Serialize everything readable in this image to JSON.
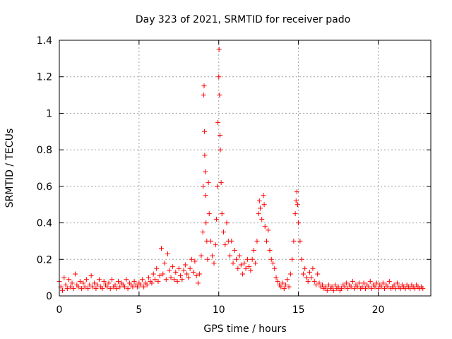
{
  "chart_data": {
    "type": "scatter",
    "title": "Day 323 of 2021, SRMTID for receiver pado",
    "xlabel": "GPS time / hours",
    "ylabel": "SRMTID / TECUs",
    "xlim": [
      0,
      23.3
    ],
    "ylim": [
      0,
      1.4
    ],
    "xticks": [
      0,
      5,
      10,
      15,
      20
    ],
    "yticks": [
      0,
      0.2,
      0.4,
      0.6,
      0.8,
      1,
      1.2,
      1.4
    ],
    "xtick_labels": [
      "0",
      "5",
      "10",
      "15",
      "20"
    ],
    "ytick_labels": [
      "0",
      "0.2",
      "0.4",
      "0.6",
      "0.8",
      "1",
      "1.2",
      "1.4"
    ],
    "grid": true,
    "marker": "+",
    "color": "#ff0000",
    "series": [
      {
        "name": "SRMTID",
        "points": [
          [
            0.0,
            0.08
          ],
          [
            0.1,
            0.05
          ],
          [
            0.2,
            0.03
          ],
          [
            0.3,
            0.1
          ],
          [
            0.4,
            0.06
          ],
          [
            0.5,
            0.04
          ],
          [
            0.6,
            0.09
          ],
          [
            0.7,
            0.05
          ],
          [
            0.8,
            0.07
          ],
          [
            0.9,
            0.04
          ],
          [
            1.0,
            0.12
          ],
          [
            1.1,
            0.06
          ],
          [
            1.2,
            0.05
          ],
          [
            1.3,
            0.08
          ],
          [
            1.4,
            0.04
          ],
          [
            1.5,
            0.07
          ],
          [
            1.6,
            0.05
          ],
          [
            1.7,
            0.09
          ],
          [
            1.8,
            0.04
          ],
          [
            1.9,
            0.06
          ],
          [
            2.0,
            0.11
          ],
          [
            2.1,
            0.05
          ],
          [
            2.2,
            0.07
          ],
          [
            2.3,
            0.04
          ],
          [
            2.4,
            0.06
          ],
          [
            2.5,
            0.09
          ],
          [
            2.6,
            0.05
          ],
          [
            2.7,
            0.04
          ],
          [
            2.8,
            0.08
          ],
          [
            2.9,
            0.06
          ],
          [
            3.0,
            0.05
          ],
          [
            3.1,
            0.07
          ],
          [
            3.2,
            0.04
          ],
          [
            3.3,
            0.09
          ],
          [
            3.4,
            0.05
          ],
          [
            3.5,
            0.06
          ],
          [
            3.6,
            0.04
          ],
          [
            3.7,
            0.08
          ],
          [
            3.8,
            0.05
          ],
          [
            3.9,
            0.07
          ],
          [
            4.0,
            0.06
          ],
          [
            4.1,
            0.05
          ],
          [
            4.2,
            0.09
          ],
          [
            4.3,
            0.04
          ],
          [
            4.4,
            0.07
          ],
          [
            4.5,
            0.06
          ],
          [
            4.6,
            0.05
          ],
          [
            4.7,
            0.08
          ],
          [
            4.8,
            0.06
          ],
          [
            4.9,
            0.05
          ],
          [
            5.0,
            0.07
          ],
          [
            5.1,
            0.06
          ],
          [
            5.2,
            0.09
          ],
          [
            5.3,
            0.05
          ],
          [
            5.4,
            0.07
          ],
          [
            5.5,
            0.06
          ],
          [
            5.6,
            0.1
          ],
          [
            5.7,
            0.08
          ],
          [
            5.8,
            0.07
          ],
          [
            5.9,
            0.12
          ],
          [
            6.0,
            0.09
          ],
          [
            6.1,
            0.15
          ],
          [
            6.2,
            0.08
          ],
          [
            6.3,
            0.11
          ],
          [
            6.4,
            0.26
          ],
          [
            6.5,
            0.12
          ],
          [
            6.6,
            0.18
          ],
          [
            6.7,
            0.09
          ],
          [
            6.8,
            0.23
          ],
          [
            6.9,
            0.14
          ],
          [
            7.0,
            0.1
          ],
          [
            7.1,
            0.16
          ],
          [
            7.2,
            0.09
          ],
          [
            7.3,
            0.13
          ],
          [
            7.4,
            0.08
          ],
          [
            7.5,
            0.15
          ],
          [
            7.6,
            0.11
          ],
          [
            7.7,
            0.09
          ],
          [
            7.8,
            0.14
          ],
          [
            7.9,
            0.17
          ],
          [
            8.0,
            0.12
          ],
          [
            8.1,
            0.1
          ],
          [
            8.2,
            0.15
          ],
          [
            8.3,
            0.2
          ],
          [
            8.4,
            0.13
          ],
          [
            8.5,
            0.19
          ],
          [
            8.6,
            0.11
          ],
          [
            8.7,
            0.07
          ],
          [
            8.8,
            0.12
          ],
          [
            8.9,
            0.22
          ],
          [
            9.0,
            0.35
          ],
          [
            9.02,
            0.6
          ],
          [
            9.05,
            1.1
          ],
          [
            9.08,
            1.15
          ],
          [
            9.1,
            0.9
          ],
          [
            9.12,
            0.77
          ],
          [
            9.15,
            0.68
          ],
          [
            9.18,
            0.55
          ],
          [
            9.2,
            0.4
          ],
          [
            9.25,
            0.3
          ],
          [
            9.3,
            0.2
          ],
          [
            9.35,
            0.62
          ],
          [
            9.4,
            0.45
          ],
          [
            9.5,
            0.3
          ],
          [
            9.6,
            0.22
          ],
          [
            9.7,
            0.18
          ],
          [
            9.8,
            0.28
          ],
          [
            9.85,
            0.42
          ],
          [
            9.9,
            0.6
          ],
          [
            9.95,
            0.95
          ],
          [
            10.0,
            1.2
          ],
          [
            10.02,
            1.35
          ],
          [
            10.05,
            1.1
          ],
          [
            10.08,
            0.88
          ],
          [
            10.1,
            0.8
          ],
          [
            10.15,
            0.62
          ],
          [
            10.2,
            0.45
          ],
          [
            10.3,
            0.35
          ],
          [
            10.4,
            0.28
          ],
          [
            10.5,
            0.4
          ],
          [
            10.6,
            0.3
          ],
          [
            10.7,
            0.22
          ],
          [
            10.8,
            0.3
          ],
          [
            10.9,
            0.18
          ],
          [
            11.0,
            0.25
          ],
          [
            11.1,
            0.2
          ],
          [
            11.2,
            0.15
          ],
          [
            11.3,
            0.22
          ],
          [
            11.4,
            0.17
          ],
          [
            11.5,
            0.12
          ],
          [
            11.6,
            0.18
          ],
          [
            11.7,
            0.15
          ],
          [
            11.8,
            0.2
          ],
          [
            11.9,
            0.16
          ],
          [
            12.0,
            0.14
          ],
          [
            12.1,
            0.2
          ],
          [
            12.2,
            0.25
          ],
          [
            12.3,
            0.18
          ],
          [
            12.4,
            0.3
          ],
          [
            12.5,
            0.45
          ],
          [
            12.55,
            0.52
          ],
          [
            12.6,
            0.48
          ],
          [
            12.7,
            0.42
          ],
          [
            12.8,
            0.55
          ],
          [
            12.85,
            0.5
          ],
          [
            12.9,
            0.38
          ],
          [
            13.0,
            0.3
          ],
          [
            13.1,
            0.36
          ],
          [
            13.2,
            0.25
          ],
          [
            13.3,
            0.2
          ],
          [
            13.4,
            0.18
          ],
          [
            13.5,
            0.15
          ],
          [
            13.6,
            0.1
          ],
          [
            13.7,
            0.08
          ],
          [
            13.8,
            0.06
          ],
          [
            13.9,
            0.05
          ],
          [
            14.0,
            0.07
          ],
          [
            14.1,
            0.04
          ],
          [
            14.2,
            0.06
          ],
          [
            14.3,
            0.09
          ],
          [
            14.4,
            0.05
          ],
          [
            14.5,
            0.12
          ],
          [
            14.6,
            0.2
          ],
          [
            14.7,
            0.3
          ],
          [
            14.8,
            0.45
          ],
          [
            14.85,
            0.52
          ],
          [
            14.9,
            0.57
          ],
          [
            14.95,
            0.5
          ],
          [
            15.0,
            0.4
          ],
          [
            15.1,
            0.3
          ],
          [
            15.2,
            0.2
          ],
          [
            15.3,
            0.12
          ],
          [
            15.4,
            0.15
          ],
          [
            15.5,
            0.1
          ],
          [
            15.6,
            0.08
          ],
          [
            15.7,
            0.13
          ],
          [
            15.8,
            0.1
          ],
          [
            15.9,
            0.15
          ],
          [
            16.0,
            0.08
          ],
          [
            16.1,
            0.06
          ],
          [
            16.2,
            0.12
          ],
          [
            16.3,
            0.07
          ],
          [
            16.4,
            0.05
          ],
          [
            16.5,
            0.06
          ],
          [
            16.6,
            0.04
          ],
          [
            16.7,
            0.05
          ],
          [
            16.8,
            0.03
          ],
          [
            16.9,
            0.06
          ],
          [
            17.0,
            0.04
          ],
          [
            17.1,
            0.05
          ],
          [
            17.2,
            0.03
          ],
          [
            17.3,
            0.06
          ],
          [
            17.4,
            0.04
          ],
          [
            17.5,
            0.05
          ],
          [
            17.6,
            0.03
          ],
          [
            17.7,
            0.04
          ],
          [
            17.8,
            0.06
          ],
          [
            17.9,
            0.05
          ],
          [
            18.0,
            0.07
          ],
          [
            18.1,
            0.04
          ],
          [
            18.2,
            0.06
          ],
          [
            18.3,
            0.05
          ],
          [
            18.4,
            0.08
          ],
          [
            18.5,
            0.04
          ],
          [
            18.6,
            0.06
          ],
          [
            18.7,
            0.05
          ],
          [
            18.8,
            0.07
          ],
          [
            18.9,
            0.04
          ],
          [
            19.0,
            0.05
          ],
          [
            19.1,
            0.07
          ],
          [
            19.2,
            0.04
          ],
          [
            19.3,
            0.06
          ],
          [
            19.4,
            0.05
          ],
          [
            19.5,
            0.08
          ],
          [
            19.6,
            0.04
          ],
          [
            19.7,
            0.06
          ],
          [
            19.8,
            0.05
          ],
          [
            19.9,
            0.07
          ],
          [
            20.0,
            0.04
          ],
          [
            20.1,
            0.06
          ],
          [
            20.2,
            0.05
          ],
          [
            20.3,
            0.07
          ],
          [
            20.4,
            0.04
          ],
          [
            20.5,
            0.06
          ],
          [
            20.6,
            0.05
          ],
          [
            20.7,
            0.08
          ],
          [
            20.8,
            0.04
          ],
          [
            20.9,
            0.05
          ],
          [
            21.0,
            0.06
          ],
          [
            21.1,
            0.04
          ],
          [
            21.2,
            0.07
          ],
          [
            21.3,
            0.05
          ],
          [
            21.4,
            0.04
          ],
          [
            21.5,
            0.06
          ],
          [
            21.6,
            0.05
          ],
          [
            21.7,
            0.04
          ],
          [
            21.8,
            0.06
          ],
          [
            21.9,
            0.05
          ],
          [
            22.0,
            0.04
          ],
          [
            22.1,
            0.06
          ],
          [
            22.2,
            0.05
          ],
          [
            22.3,
            0.04
          ],
          [
            22.4,
            0.06
          ],
          [
            22.5,
            0.05
          ],
          [
            22.6,
            0.04
          ],
          [
            22.7,
            0.05
          ],
          [
            22.8,
            0.04
          ]
        ]
      }
    ]
  }
}
